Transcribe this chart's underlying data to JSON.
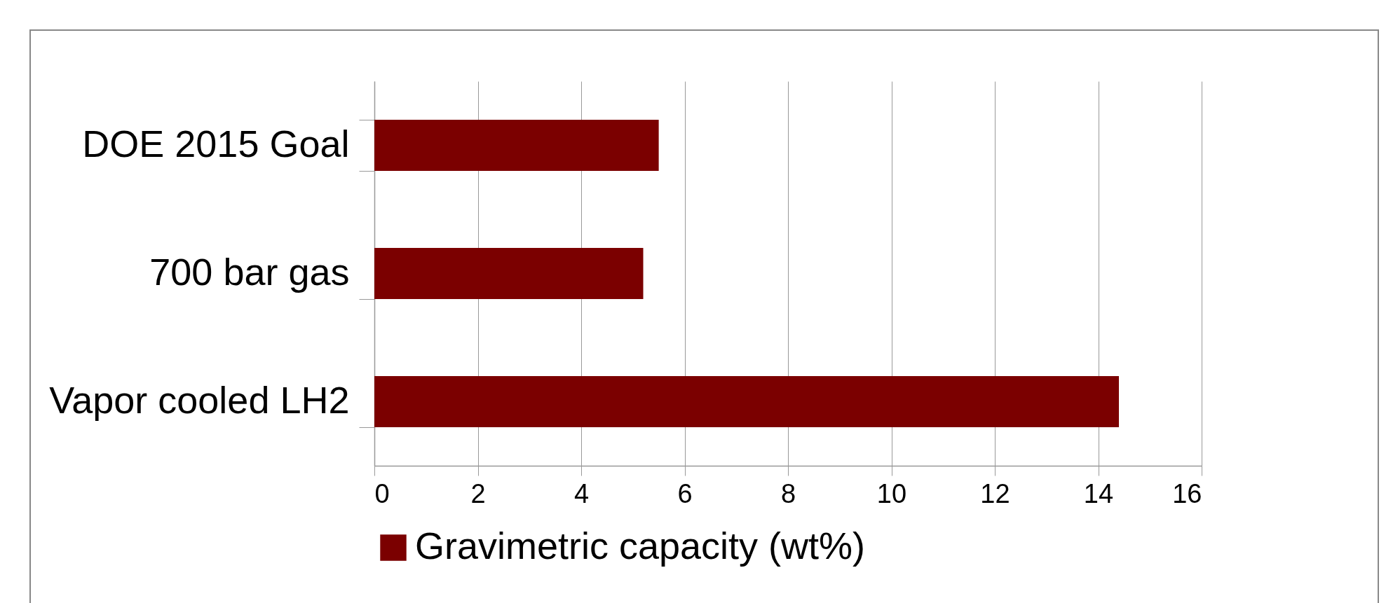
{
  "chart_data": {
    "type": "bar",
    "orientation": "horizontal",
    "categories": [
      "DOE 2015 Goal",
      "700 bar gas",
      "Vapor cooled LH2"
    ],
    "series": [
      {
        "name": "Gravimetric capacity (wt%)",
        "color": "#7b0000",
        "values": [
          5.5,
          5.2,
          14.4
        ]
      }
    ],
    "xlim": [
      0,
      16
    ],
    "xticks": [
      0,
      2,
      4,
      6,
      8,
      10,
      12,
      14,
      16
    ],
    "grid": "x",
    "legend": "bottom"
  }
}
